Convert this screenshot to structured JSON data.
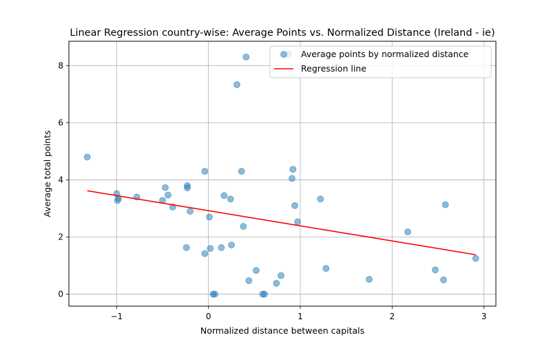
{
  "chart_data": {
    "type": "scatter",
    "title": "Linear Regression country-wise: Average Points vs. Normalized Distance (Ireland - ie)",
    "xlabel": "Normalized distance between capitals",
    "ylabel": "Average total points",
    "xlim": [
      -1.52,
      3.13
    ],
    "ylim": [
      -0.42,
      8.85
    ],
    "xticks": [
      -1,
      0,
      1,
      2,
      3
    ],
    "yticks": [
      0,
      2,
      4,
      6,
      8
    ],
    "grid": true,
    "legend_position": "top-right",
    "series": [
      {
        "name": "Average points by normalized distance",
        "kind": "scatter",
        "color": "#1f77b4",
        "points": [
          [
            -1.32,
            4.8
          ],
          [
            -1.0,
            3.52
          ],
          [
            -0.99,
            3.28
          ],
          [
            -0.98,
            3.35
          ],
          [
            -0.78,
            3.4
          ],
          [
            -0.5,
            3.28
          ],
          [
            -0.47,
            3.73
          ],
          [
            -0.44,
            3.47
          ],
          [
            -0.39,
            3.05
          ],
          [
            -0.23,
            3.8
          ],
          [
            -0.23,
            3.72
          ],
          [
            -0.2,
            2.9
          ],
          [
            -0.24,
            1.63
          ],
          [
            -0.04,
            4.3
          ],
          [
            -0.04,
            1.42
          ],
          [
            0.01,
            2.7
          ],
          [
            0.02,
            1.6
          ],
          [
            0.05,
            0.0
          ],
          [
            0.07,
            0.0
          ],
          [
            0.14,
            1.63
          ],
          [
            0.17,
            3.45
          ],
          [
            0.24,
            3.33
          ],
          [
            0.25,
            1.72
          ],
          [
            0.31,
            7.33
          ],
          [
            0.36,
            4.3
          ],
          [
            0.38,
            2.37
          ],
          [
            0.41,
            8.3
          ],
          [
            0.44,
            0.47
          ],
          [
            0.52,
            0.83
          ],
          [
            0.59,
            0.0
          ],
          [
            0.61,
            0.0
          ],
          [
            0.74,
            0.38
          ],
          [
            0.79,
            0.65
          ],
          [
            0.87,
            8.4
          ],
          [
            0.91,
            4.05
          ],
          [
            0.92,
            4.37
          ],
          [
            0.94,
            3.1
          ],
          [
            0.97,
            2.53
          ],
          [
            1.22,
            3.33
          ],
          [
            1.28,
            0.9
          ],
          [
            1.75,
            0.52
          ],
          [
            2.17,
            2.18
          ],
          [
            2.47,
            0.85
          ],
          [
            2.56,
            0.5
          ],
          [
            2.58,
            3.13
          ],
          [
            2.91,
            1.25
          ]
        ]
      },
      {
        "name": "Regression line",
        "kind": "line",
        "color": "#ff0000",
        "points": [
          [
            -1.32,
            3.62
          ],
          [
            2.91,
            1.38
          ]
        ]
      }
    ]
  }
}
